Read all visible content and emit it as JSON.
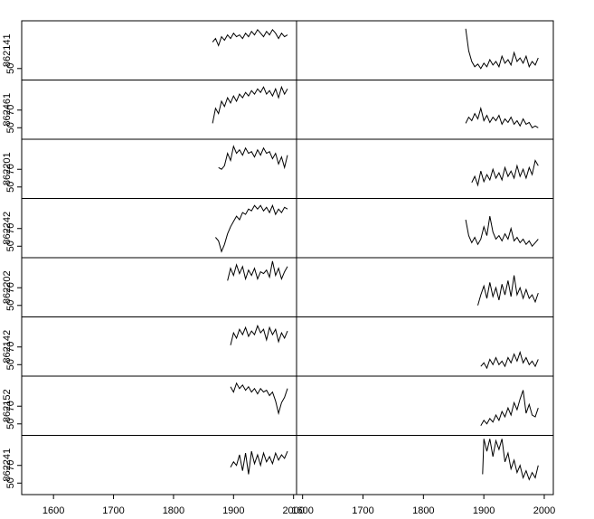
{
  "chart_data": [
    {
      "type": "line",
      "y_label": "862141",
      "xlim": [
        1547,
        2005
      ],
      "ylim": [
        37,
        104
      ],
      "yticks": [
        50
      ],
      "x": [
        1865,
        1870,
        1875,
        1880,
        1885,
        1890,
        1895,
        1900,
        1905,
        1910,
        1915,
        1920,
        1925,
        1930,
        1935,
        1940,
        1945,
        1950,
        1955,
        1960,
        1965,
        1970,
        1975,
        1980,
        1985,
        1990
      ],
      "values": [
        80,
        84,
        76,
        86,
        82,
        88,
        84,
        90,
        86,
        88,
        84,
        90,
        86,
        92,
        88,
        94,
        90,
        86,
        92,
        88,
        94,
        90,
        84,
        90,
        86,
        88
      ]
    },
    {
      "type": "line",
      "xlim": [
        1590,
        2015
      ],
      "ylim": [
        37,
        104
      ],
      "x": [
        1870,
        1875,
        1880,
        1885,
        1890,
        1895,
        1900,
        1905,
        1910,
        1915,
        1920,
        1925,
        1930,
        1935,
        1940,
        1945,
        1950,
        1955,
        1960,
        1965,
        1970,
        1975,
        1980,
        1985,
        1990
      ],
      "values": [
        95,
        70,
        58,
        52,
        55,
        50,
        56,
        52,
        60,
        54,
        58,
        52,
        64,
        56,
        60,
        54,
        68,
        58,
        62,
        56,
        64,
        52,
        58,
        54,
        62
      ]
    },
    {
      "type": "line",
      "y_label": "862461",
      "xlim": [
        1547,
        2005
      ],
      "ylim": [
        37,
        104
      ],
      "yticks": [
        50,
        70
      ],
      "x": [
        1865,
        1870,
        1875,
        1880,
        1885,
        1890,
        1895,
        1900,
        1905,
        1910,
        1915,
        1920,
        1925,
        1930,
        1935,
        1940,
        1945,
        1950,
        1955,
        1960,
        1965,
        1970,
        1975,
        1980,
        1985,
        1990
      ],
      "values": [
        55,
        72,
        66,
        80,
        74,
        84,
        78,
        86,
        80,
        88,
        84,
        90,
        86,
        92,
        88,
        94,
        90,
        96,
        88,
        92,
        86,
        94,
        84,
        96,
        88,
        94
      ]
    },
    {
      "type": "line",
      "xlim": [
        1590,
        2015
      ],
      "ylim": [
        37,
        104
      ],
      "x": [
        1870,
        1875,
        1880,
        1885,
        1890,
        1895,
        1900,
        1905,
        1910,
        1915,
        1920,
        1925,
        1930,
        1935,
        1940,
        1945,
        1950,
        1955,
        1960,
        1965,
        1970,
        1975,
        1980,
        1985,
        1990
      ],
      "values": [
        55,
        62,
        58,
        66,
        60,
        72,
        58,
        64,
        56,
        62,
        58,
        64,
        54,
        60,
        56,
        62,
        54,
        58,
        52,
        60,
        54,
        56,
        50,
        52,
        50
      ]
    },
    {
      "type": "line",
      "y_label": "862201",
      "xlim": [
        1547,
        2005
      ],
      "ylim": [
        37,
        104
      ],
      "yticks": [
        50,
        70
      ],
      "x": [
        1875,
        1880,
        1885,
        1890,
        1895,
        1900,
        1905,
        1910,
        1915,
        1920,
        1925,
        1930,
        1935,
        1940,
        1945,
        1950,
        1955,
        1960,
        1965,
        1970,
        1975,
        1980,
        1985,
        1990
      ],
      "values": [
        72,
        70,
        74,
        88,
        80,
        96,
        88,
        92,
        86,
        94,
        88,
        90,
        84,
        92,
        86,
        94,
        88,
        90,
        82,
        88,
        76,
        84,
        72,
        86
      ]
    },
    {
      "type": "line",
      "xlim": [
        1590,
        2015
      ],
      "ylim": [
        37,
        104
      ],
      "x": [
        1880,
        1885,
        1890,
        1895,
        1900,
        1905,
        1910,
        1915,
        1920,
        1925,
        1930,
        1935,
        1940,
        1945,
        1950,
        1955,
        1960,
        1965,
        1970,
        1975,
        1980,
        1985,
        1990
      ],
      "values": [
        55,
        62,
        52,
        68,
        56,
        64,
        58,
        70,
        60,
        66,
        58,
        72,
        62,
        68,
        60,
        74,
        62,
        70,
        60,
        72,
        64,
        80,
        74
      ]
    },
    {
      "type": "line",
      "y_label": "862242",
      "xlim": [
        1547,
        2005
      ],
      "ylim": [
        37,
        104
      ],
      "yticks": [
        50,
        70
      ],
      "x": [
        1870,
        1875,
        1880,
        1885,
        1890,
        1895,
        1900,
        1905,
        1910,
        1915,
        1920,
        1925,
        1930,
        1935,
        1940,
        1945,
        1950,
        1955,
        1960,
        1965,
        1970,
        1975,
        1980,
        1985,
        1990
      ],
      "values": [
        60,
        56,
        44,
        52,
        64,
        72,
        78,
        84,
        80,
        88,
        86,
        92,
        90,
        96,
        92,
        96,
        90,
        94,
        88,
        96,
        86,
        92,
        88,
        94,
        92
      ]
    },
    {
      "type": "line",
      "xlim": [
        1590,
        2015
      ],
      "ylim": [
        37,
        104
      ],
      "x": [
        1870,
        1875,
        1880,
        1885,
        1890,
        1895,
        1900,
        1905,
        1910,
        1915,
        1920,
        1925,
        1930,
        1935,
        1940,
        1945,
        1950,
        1955,
        1960,
        1965,
        1970,
        1975,
        1980,
        1985,
        1990
      ],
      "values": [
        80,
        62,
        54,
        60,
        52,
        58,
        72,
        62,
        84,
        66,
        58,
        62,
        56,
        64,
        58,
        70,
        56,
        60,
        54,
        58,
        52,
        56,
        50,
        54,
        58
      ]
    },
    {
      "type": "line",
      "y_label": "862202",
      "xlim": [
        1547,
        2005
      ],
      "ylim": [
        37,
        104
      ],
      "yticks": [
        50,
        70
      ],
      "x": [
        1890,
        1895,
        1900,
        1905,
        1910,
        1915,
        1920,
        1925,
        1930,
        1935,
        1940,
        1945,
        1950,
        1955,
        1960,
        1965,
        1970,
        1975,
        1980,
        1985,
        1990
      ],
      "values": [
        78,
        92,
        84,
        96,
        86,
        94,
        80,
        90,
        84,
        92,
        80,
        88,
        86,
        90,
        82,
        100,
        84,
        92,
        80,
        88,
        94
      ]
    },
    {
      "type": "line",
      "xlim": [
        1590,
        2015
      ],
      "ylim": [
        37,
        104
      ],
      "x": [
        1890,
        1895,
        1900,
        1905,
        1910,
        1915,
        1920,
        1925,
        1930,
        1935,
        1940,
        1945,
        1950,
        1955,
        1960,
        1965,
        1970,
        1975,
        1980,
        1985,
        1990
      ],
      "values": [
        50,
        62,
        72,
        58,
        76,
        60,
        70,
        56,
        74,
        62,
        78,
        60,
        84,
        62,
        70,
        58,
        68,
        58,
        62,
        54,
        64
      ]
    },
    {
      "type": "line",
      "y_label": "862142",
      "xlim": [
        1547,
        2005
      ],
      "ylim": [
        37,
        104
      ],
      "yticks": [
        50,
        70
      ],
      "x": [
        1895,
        1900,
        1905,
        1910,
        1915,
        1920,
        1925,
        1930,
        1935,
        1940,
        1945,
        1950,
        1955,
        1960,
        1965,
        1970,
        1975,
        1980,
        1985,
        1990
      ],
      "values": [
        72,
        86,
        80,
        90,
        84,
        92,
        82,
        88,
        84,
        94,
        86,
        90,
        78,
        92,
        84,
        90,
        76,
        86,
        80,
        88
      ]
    },
    {
      "type": "line",
      "xlim": [
        1590,
        2015
      ],
      "ylim": [
        37,
        104
      ],
      "x": [
        1895,
        1900,
        1905,
        1910,
        1915,
        1920,
        1925,
        1930,
        1935,
        1940,
        1945,
        1950,
        1955,
        1960,
        1965,
        1970,
        1975,
        1980,
        1985,
        1990
      ],
      "values": [
        48,
        52,
        46,
        56,
        50,
        58,
        50,
        54,
        48,
        58,
        52,
        62,
        54,
        64,
        52,
        58,
        50,
        54,
        48,
        56
      ]
    },
    {
      "type": "line",
      "y_label": "862152",
      "xlim": [
        1547,
        2005
      ],
      "ylim": [
        37,
        104
      ],
      "yticks": [
        50,
        70
      ],
      "x": [
        1895,
        1900,
        1905,
        1910,
        1915,
        1920,
        1925,
        1930,
        1935,
        1940,
        1945,
        1950,
        1955,
        1960,
        1965,
        1970,
        1975,
        1980,
        1985,
        1990
      ],
      "values": [
        92,
        86,
        96,
        90,
        94,
        88,
        92,
        86,
        90,
        84,
        90,
        86,
        88,
        82,
        86,
        76,
        62,
        74,
        80,
        90
      ]
    },
    {
      "type": "line",
      "xlim": [
        1590,
        2015
      ],
      "ylim": [
        37,
        104
      ],
      "x": [
        1895,
        1900,
        1905,
        1910,
        1915,
        1920,
        1925,
        1930,
        1935,
        1940,
        1945,
        1950,
        1955,
        1960,
        1965,
        1970,
        1975,
        1980,
        1985,
        1990
      ],
      "values": [
        48,
        54,
        50,
        56,
        52,
        60,
        54,
        64,
        58,
        68,
        60,
        74,
        66,
        78,
        88,
        62,
        72,
        60,
        58,
        68
      ]
    },
    {
      "type": "line",
      "y_label": "862241",
      "xlim": [
        1547,
        2005
      ],
      "ylim": [
        37,
        104
      ],
      "yticks": [
        50,
        70
      ],
      "x": [
        1895,
        1900,
        1905,
        1910,
        1915,
        1920,
        1925,
        1930,
        1935,
        1940,
        1945,
        1950,
        1955,
        1960,
        1965,
        1970,
        1975,
        1980,
        1985,
        1990
      ],
      "values": [
        68,
        74,
        70,
        82,
        64,
        84,
        60,
        86,
        72,
        82,
        70,
        84,
        74,
        80,
        72,
        84,
        76,
        82,
        78,
        86
      ],
      "xticks": [
        1600,
        1700,
        1800,
        1900,
        2000
      ]
    },
    {
      "type": "line",
      "xlim": [
        1590,
        2015
      ],
      "ylim": [
        37,
        104
      ],
      "x": [
        1898,
        1900,
        1905,
        1910,
        1915,
        1920,
        1925,
        1930,
        1935,
        1940,
        1945,
        1950,
        1955,
        1960,
        1965,
        1970,
        1975,
        1980,
        1985,
        1990
      ],
      "values": [
        60,
        100,
        86,
        100,
        80,
        98,
        88,
        100,
        74,
        84,
        66,
        76,
        62,
        70,
        56,
        64,
        54,
        62,
        56,
        70
      ],
      "xticks": [
        1600,
        1700,
        1800,
        1900,
        2000
      ]
    }
  ]
}
